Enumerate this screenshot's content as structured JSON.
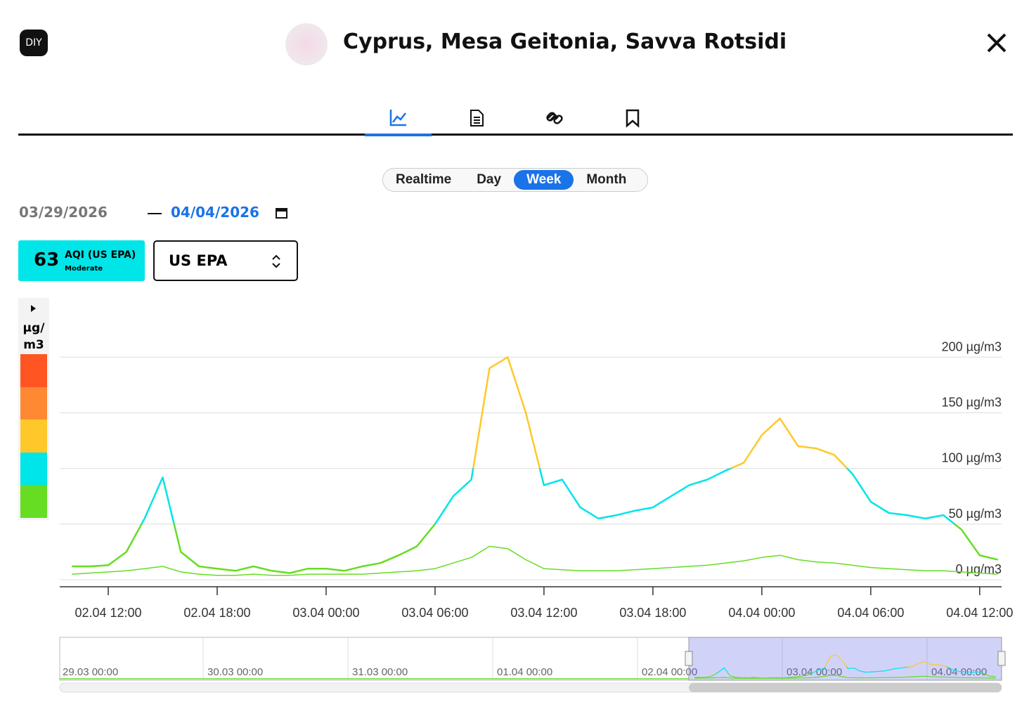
{
  "header": {
    "logo": "DIY",
    "title": "Cyprus, Mesa Geitonia, Savva Rotsidi"
  },
  "ranges": {
    "options": [
      "Realtime",
      "Day",
      "Week",
      "Month"
    ],
    "active": 2
  },
  "dates": {
    "from": "03/29/2026",
    "to": "04/04/2026"
  },
  "badge": {
    "value": "63",
    "label": "AQI (US EPA)",
    "status": "Moderate",
    "color": "#00e5e8"
  },
  "select": {
    "value": "US EPA"
  },
  "scale": {
    "unit": "µg/m3",
    "colors": [
      "#ff5522",
      "#ff8833",
      "#ffc82a",
      "#00e5e8",
      "#66dd22"
    ]
  },
  "chart_data": {
    "type": "line",
    "x": [
      "02.04 10:00",
      "02.04 11:00",
      "02.04 12:00",
      "02.04 13:00",
      "02.04 14:00",
      "02.04 15:00",
      "02.04 16:00",
      "02.04 17:00",
      "02.04 18:00",
      "02.04 19:00",
      "02.04 20:00",
      "02.04 21:00",
      "02.04 22:00",
      "02.04 23:00",
      "03.04 00:00",
      "03.04 01:00",
      "03.04 02:00",
      "03.04 03:00",
      "03.04 04:00",
      "03.04 05:00",
      "03.04 06:00",
      "03.04 07:00",
      "03.04 08:00",
      "03.04 09:00",
      "03.04 10:00",
      "03.04 11:00",
      "03.04 12:00",
      "03.04 13:00",
      "03.04 14:00",
      "03.04 15:00",
      "03.04 16:00",
      "03.04 17:00",
      "03.04 18:00",
      "03.04 19:00",
      "03.04 20:00",
      "03.04 21:00",
      "03.04 22:00",
      "03.04 23:00",
      "04.04 00:00",
      "04.04 01:00",
      "04.04 02:00",
      "04.04 03:00",
      "04.04 04:00",
      "04.04 05:00",
      "04.04 06:00",
      "04.04 07:00",
      "04.04 08:00",
      "04.04 09:00",
      "04.04 10:00",
      "04.04 11:00",
      "04.04 12:00",
      "04.04 13:00"
    ],
    "series": [
      {
        "width": 2.5,
        "values": [
          12,
          12,
          13,
          25,
          55,
          92,
          25,
          12,
          10,
          8,
          12,
          8,
          6,
          10,
          10,
          8,
          12,
          15,
          22,
          30,
          50,
          75,
          90,
          190,
          200,
          150,
          85,
          90,
          65,
          55,
          58,
          62,
          65,
          75,
          85,
          90,
          98,
          105,
          130,
          145,
          120,
          118,
          112,
          95,
          70,
          60,
          58,
          55,
          58,
          45,
          22,
          18
        ]
      },
      {
        "width": 1.5,
        "values": [
          5,
          6,
          7,
          8,
          10,
          12,
          7,
          5,
          4,
          4,
          5,
          4,
          4,
          5,
          5,
          5,
          5,
          6,
          7,
          8,
          10,
          15,
          20,
          30,
          28,
          18,
          10,
          9,
          8,
          8,
          8,
          9,
          10,
          11,
          12,
          13,
          15,
          17,
          20,
          22,
          18,
          16,
          15,
          13,
          11,
          10,
          9,
          8,
          8,
          7,
          6,
          5
        ]
      }
    ],
    "color_bands": [
      {
        "from": 0,
        "color": "#66dd22"
      },
      {
        "from": 50,
        "color": "#00e5e8"
      },
      {
        "from": 100,
        "color": "#ffc82a"
      }
    ],
    "ylim": [
      0,
      245
    ],
    "yticks": [
      {
        "value": 0,
        "label": "0 µg/m3"
      },
      {
        "value": 50,
        "label": "50 µg/m3"
      },
      {
        "value": 100,
        "label": "100 µg/m3"
      },
      {
        "value": 150,
        "label": "150 µg/m3"
      },
      {
        "value": 200,
        "label": "200 µg/m3"
      }
    ],
    "xticks": [
      "02.04 12:00",
      "02.04 18:00",
      "03.04 00:00",
      "03.04 06:00",
      "03.04 12:00",
      "03.04 18:00",
      "04.04 00:00",
      "04.04 06:00",
      "04.04 12:00"
    ],
    "grid": true
  },
  "navigator": {
    "labels": [
      "29.03 00:00",
      "30.03 00:00",
      "31.03 00:00",
      "01.04 00:00",
      "02.04 00:00",
      "03.04 00:00",
      "04.04 00:00"
    ]
  }
}
